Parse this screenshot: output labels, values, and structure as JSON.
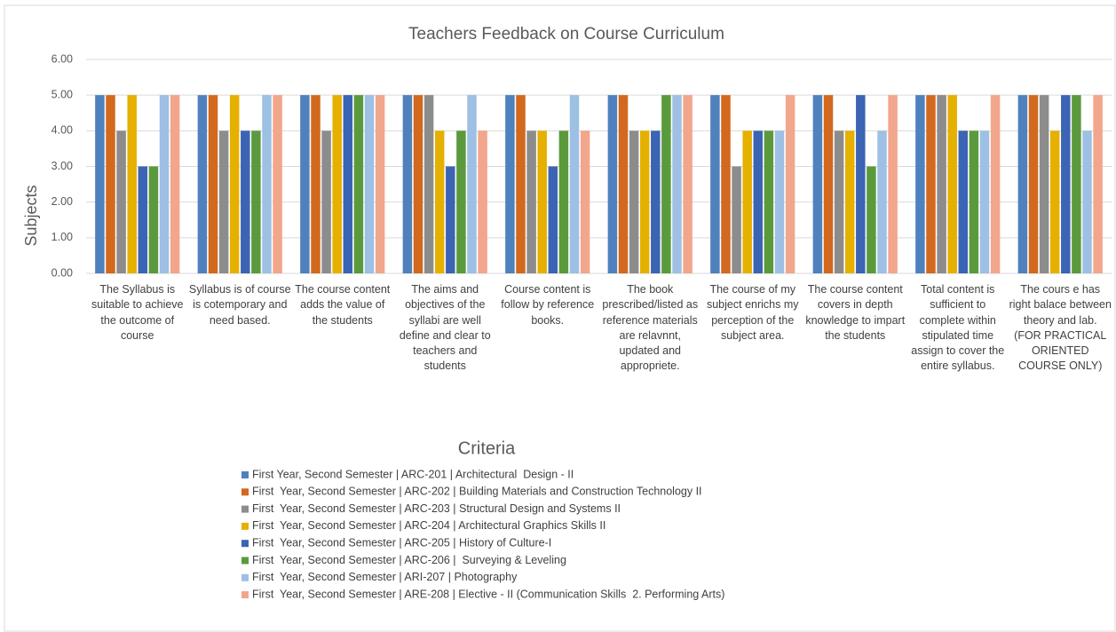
{
  "chart_data": {
    "type": "bar",
    "title": "Teachers Feedback on Course Curriculum",
    "x_label": "Criteria",
    "y_label": "Subjects",
    "categories": [
      "The Syllabus is suitable to achieve the outcome  of course",
      "Syllabus is of course is cotemporary and need based.",
      "The course content adds the value of the students",
      "The aims and objectives of the syllabi are well define and clear to teachers and students",
      "Course content is follow by reference books.",
      "The book prescribed/listed as reference materials are relavnnt, updated and appropriete.",
      "The course of my subject enrichs my perception of the subject area.",
      "The course content covers in depth knowledge to impart the students",
      "Total content is sufficient to complete within stipulated time assign to cover the entire syllabus.",
      "The cours e has right balace between theory and lab. (FOR PRACTICAL ORIENTED COURSE ONLY)"
    ],
    "series": [
      {
        "name": "First Year, Second Semester | ARC-201 | Architectural  Design - II",
        "color": "#4f81bd",
        "values": [
          5,
          5,
          5,
          5,
          5,
          5,
          5,
          5,
          5,
          5
        ]
      },
      {
        "name": "First  Year, Second Semester | ARC-202 | Building Materials and Construction Technology II",
        "color": "#d2691e",
        "values": [
          5,
          5,
          5,
          5,
          5,
          5,
          5,
          5,
          5,
          5
        ]
      },
      {
        "name": "First  Year, Second Semester | ARC-203 | Structural Design and Systems II",
        "color": "#8c8c8c",
        "values": [
          4,
          4,
          4,
          5,
          4,
          4,
          3,
          4,
          5,
          5
        ]
      },
      {
        "name": "First  Year, Second Semester | ARC-204 | Architectural Graphics Skills II",
        "color": "#e6b000",
        "values": [
          5,
          5,
          5,
          4,
          4,
          4,
          4,
          4,
          5,
          4
        ]
      },
      {
        "name": "First  Year, Second Semester | ARC-205 | History of Culture-I",
        "color": "#3c64b4",
        "values": [
          3,
          4,
          5,
          3,
          3,
          4,
          4,
          5,
          4,
          5
        ]
      },
      {
        "name": "First  Year, Second Semester | ARC-206 |  Surveying & Leveling",
        "color": "#5b9a3c",
        "values": [
          3,
          4,
          5,
          4,
          4,
          5,
          4,
          3,
          4,
          5
        ]
      },
      {
        "name": "First  Year, Second Semester | ARI-207 | Photography",
        "color": "#9dc0e4",
        "values": [
          5,
          5,
          5,
          5,
          5,
          5,
          4,
          4,
          4,
          4
        ]
      },
      {
        "name": "First  Year, Second Semester | ARE-208 | Elective - II (Communication Skills  2. Performing Arts)",
        "color": "#f2a68c",
        "values": [
          5,
          5,
          5,
          4,
          4,
          5,
          5,
          5,
          5,
          5
        ]
      }
    ],
    "ylim": [
      0,
      6
    ],
    "yticks": [
      {
        "value": 0,
        "label": "0.00"
      },
      {
        "value": 1,
        "label": "1.00"
      },
      {
        "value": 2,
        "label": "2.00"
      },
      {
        "value": 3,
        "label": "3.00"
      },
      {
        "value": 4,
        "label": "4.00"
      },
      {
        "value": 5,
        "label": "5.00"
      },
      {
        "value": 6,
        "label": "6.00"
      }
    ],
    "grid": true
  }
}
